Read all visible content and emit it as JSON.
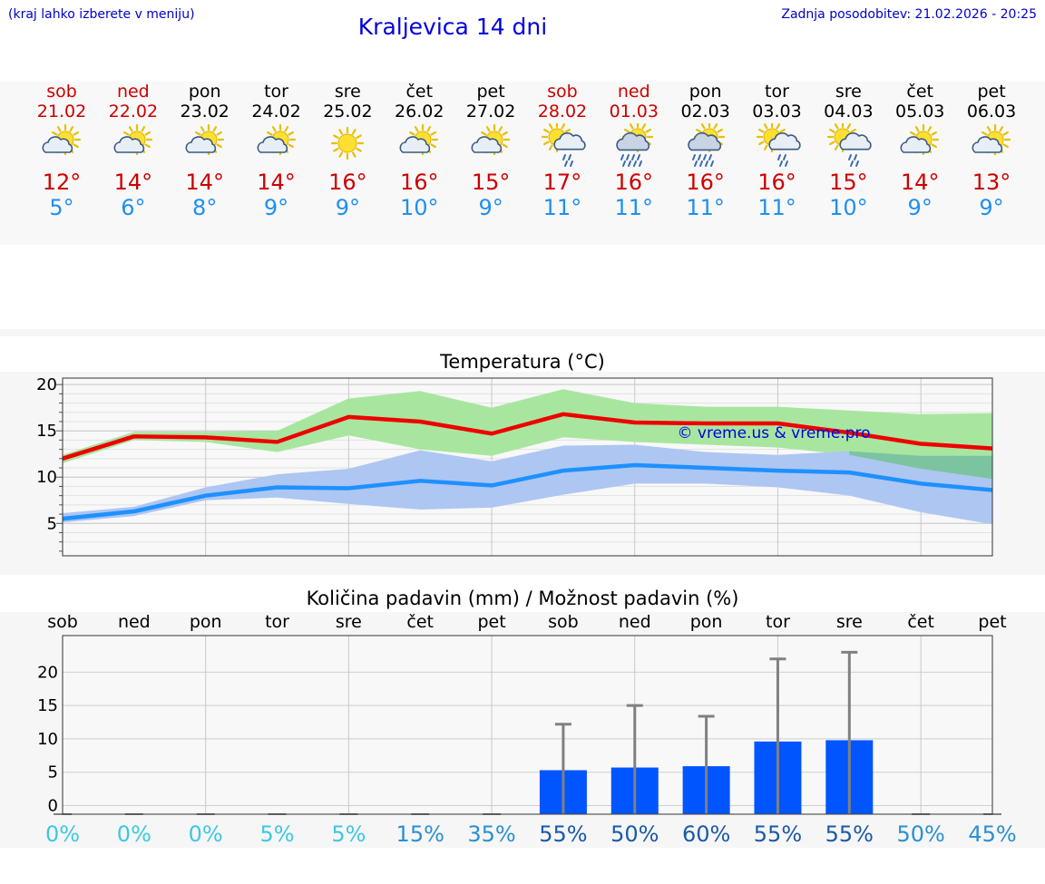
{
  "header": {
    "left_note": "(kraj lahko izberete v meniju)",
    "title": "Kraljevica 14 dni",
    "last_update": "Zadnja posodobitev: 21.02.2026 - 20:25"
  },
  "days": [
    {
      "name": "sob",
      "date": "21.02",
      "weekend": true,
      "icon": "sun-cloud-icon",
      "tmax": "12°",
      "tmin": "5°"
    },
    {
      "name": "ned",
      "date": "22.02",
      "weekend": true,
      "icon": "sun-cloud-icon",
      "tmax": "14°",
      "tmin": "6°"
    },
    {
      "name": "pon",
      "date": "23.02",
      "weekend": false,
      "icon": "sun-cloud-icon",
      "tmax": "14°",
      "tmin": "8°"
    },
    {
      "name": "tor",
      "date": "24.02",
      "weekend": false,
      "icon": "sun-cloud-icon",
      "tmax": "14°",
      "tmin": "9°"
    },
    {
      "name": "sre",
      "date": "25.02",
      "weekend": false,
      "icon": "sun-icon",
      "tmax": "16°",
      "tmin": "9°"
    },
    {
      "name": "čet",
      "date": "26.02",
      "weekend": false,
      "icon": "sun-cloud-icon",
      "tmax": "16°",
      "tmin": "10°"
    },
    {
      "name": "pet",
      "date": "27.02",
      "weekend": false,
      "icon": "sun-cloud-icon",
      "tmax": "15°",
      "tmin": "9°"
    },
    {
      "name": "sob",
      "date": "28.02",
      "weekend": true,
      "icon": "sun-cloud-rain-icon",
      "tmax": "17°",
      "tmin": "11°"
    },
    {
      "name": "ned",
      "date": "01.03",
      "weekend": true,
      "icon": "sun-cloud-heavy-rain-icon",
      "tmax": "16°",
      "tmin": "11°"
    },
    {
      "name": "pon",
      "date": "02.03",
      "weekend": false,
      "icon": "sun-cloud-heavy-rain-icon",
      "tmax": "16°",
      "tmin": "11°"
    },
    {
      "name": "tor",
      "date": "03.03",
      "weekend": false,
      "icon": "sun-cloud-rain-icon",
      "tmax": "16°",
      "tmin": "11°"
    },
    {
      "name": "sre",
      "date": "04.03",
      "weekend": false,
      "icon": "sun-cloud-rain-icon",
      "tmax": "15°",
      "tmin": "10°"
    },
    {
      "name": "čet",
      "date": "05.03",
      "weekend": false,
      "icon": "sun-cloud-icon",
      "tmax": "14°",
      "tmin": "9°"
    },
    {
      "name": "pet",
      "date": "06.03",
      "weekend": false,
      "icon": "sun-cloud-icon",
      "tmax": "13°",
      "tmin": "9°"
    }
  ],
  "colors": {
    "max_line": "#ee0000",
    "min_line": "#1e90ff",
    "max_band": "#a8e6a0",
    "min_band": "#aec6f2",
    "overlap_band": "#7cc4a0",
    "bar": "#0055ff",
    "whisker": "#808080",
    "watermark": "#0000dd"
  },
  "chart_data": [
    {
      "type": "line",
      "title": "Temperatura (°C)",
      "watermark": "© vreme.us & vreme.pro",
      "x": [
        "21.02",
        "22.02",
        "23.02",
        "24.02",
        "25.02",
        "26.02",
        "27.02",
        "28.02",
        "01.03",
        "02.03",
        "03.03",
        "04.03",
        "05.03",
        "06.03"
      ],
      "ylim": [
        1.5,
        20.7
      ],
      "yticks": [
        5,
        10,
        15,
        20
      ],
      "series": [
        {
          "name": "max",
          "values": [
            12.0,
            14.4,
            14.3,
            13.8,
            16.5,
            16.0,
            14.7,
            16.8,
            15.9,
            15.8,
            15.8,
            14.8,
            13.6,
            13.1
          ],
          "band_low": [
            11.5,
            14.0,
            13.8,
            12.7,
            14.5,
            13.0,
            12.3,
            14.3,
            13.8,
            13.5,
            13.2,
            12.4,
            10.9,
            9.8
          ],
          "band_high": [
            12.4,
            14.9,
            14.9,
            15.0,
            18.5,
            19.3,
            17.5,
            19.5,
            18.0,
            17.6,
            17.6,
            17.2,
            16.8,
            16.9
          ]
        },
        {
          "name": "min",
          "values": [
            5.5,
            6.3,
            8.0,
            8.9,
            8.8,
            9.6,
            9.1,
            10.7,
            11.3,
            11.0,
            10.7,
            10.5,
            9.3,
            8.6
          ],
          "band_low": [
            5.1,
            5.8,
            7.5,
            7.8,
            7.1,
            6.5,
            6.7,
            8.1,
            9.3,
            9.3,
            8.9,
            8.0,
            6.2,
            4.9
          ],
          "band_high": [
            6.1,
            6.8,
            8.9,
            10.3,
            10.9,
            12.9,
            11.7,
            13.4,
            13.5,
            12.7,
            12.4,
            12.8,
            12.3,
            12.3
          ]
        }
      ]
    },
    {
      "type": "bar",
      "title": "Količina padavin (mm) / Možnost padavin (%)",
      "categories": [
        "sob",
        "ned",
        "pon",
        "tor",
        "sre",
        "čet",
        "pet",
        "sob",
        "ned",
        "pon",
        "tor",
        "sre",
        "čet",
        "pet"
      ],
      "values": [
        0,
        0,
        0,
        0,
        0,
        0,
        0,
        5.3,
        5.7,
        5.9,
        9.6,
        9.8,
        0,
        0
      ],
      "whisker_high": [
        0,
        0,
        0,
        0,
        0,
        0,
        0,
        12.2,
        15.0,
        13.4,
        22.0,
        23.0,
        0,
        0
      ],
      "ylim": [
        -1.3,
        25.5
      ],
      "yticks": [
        0,
        5,
        10,
        15,
        20
      ],
      "probability": [
        "0%",
        "0%",
        "0%",
        "5%",
        "5%",
        "15%",
        "35%",
        "55%",
        "50%",
        "60%",
        "55%",
        "55%",
        "50%",
        "45%"
      ],
      "probability_colors": [
        "#3ec8e0",
        "#3ec8e0",
        "#3ec8e0",
        "#3ec8e0",
        "#3ec8e0",
        "#2a90d0",
        "#2a90d0",
        "#1a5aa8",
        "#1a5aa8",
        "#1a5aa8",
        "#1a5aa8",
        "#1a5aa8",
        "#2a90d0",
        "#2a90d0"
      ]
    }
  ]
}
